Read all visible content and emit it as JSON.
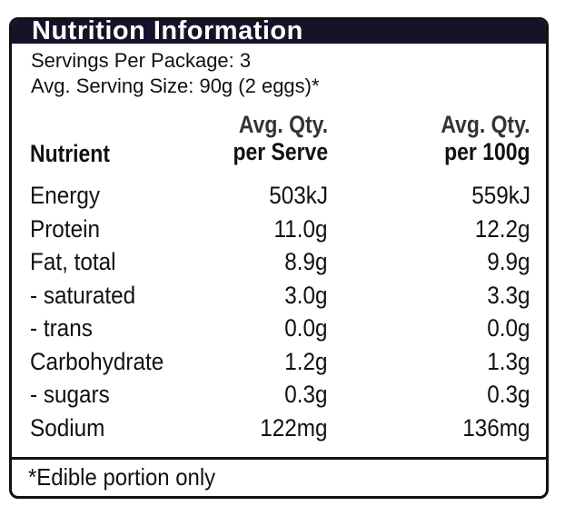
{
  "title": "Nutrition Information",
  "servings_per_package": "Servings Per Package: 3",
  "serving_size": "Avg. Serving Size: 90g (2 eggs)*",
  "columns": {
    "nutrient": "Nutrient",
    "per_serve_1": "Avg. Qty.",
    "per_serve_2": "per Serve",
    "per_100g_1": "Avg. Qty.",
    "per_100g_2": "per 100g"
  },
  "rows": [
    {
      "name": "Energy",
      "serve": "503kJ",
      "per100": "559kJ"
    },
    {
      "name": "Protein",
      "serve": "11.0g",
      "per100": "12.2g"
    },
    {
      "name": "Fat, total",
      "serve": "8.9g",
      "per100": "9.9g"
    },
    {
      "name": "- saturated",
      "serve": "3.0g",
      "per100": "3.3g"
    },
    {
      "name": "- trans",
      "serve": "0.0g",
      "per100": "0.0g"
    },
    {
      "name": "Carbohydrate",
      "serve": "1.2g",
      "per100": "1.3g"
    },
    {
      "name": "- sugars",
      "serve": "0.3g",
      "per100": "0.3g"
    },
    {
      "name": "Sodium",
      "serve": "122mg",
      "per100": "136mg"
    }
  ],
  "footnote": "*Edible portion only"
}
